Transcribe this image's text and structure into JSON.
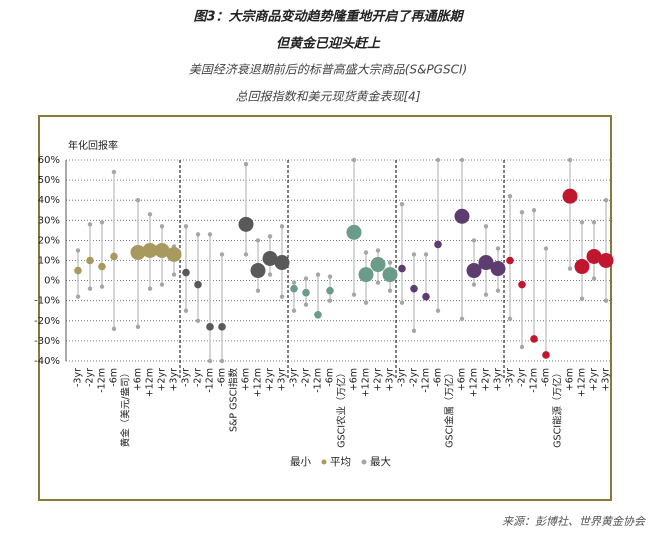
{
  "header": {
    "title": "图3：大宗商品变动趋势隆重地开启了再通胀期",
    "title2": "但黄金已迎头赶上",
    "subtitle": "美国经济衰退期前后的标普高盛大宗商品(S&PGSCI)",
    "subtitle2": "总回报指数和美元现货黄金表现[4]"
  },
  "chart_data": {
    "type": "dot-range",
    "y_label": "年化回报率",
    "categories": [
      "-3yr",
      "-2yr",
      "-12m",
      "-6m",
      "黄金（美元/盎司）",
      "+6m",
      "+12m",
      "+2yr",
      "+3yr",
      "-3yr",
      "-2yr",
      "-12m",
      "-6m",
      "S&P GSCI指数",
      "+6m",
      "+12m",
      "+2yr",
      "+3yr",
      "-3yr",
      "-2yr",
      "-12m",
      "-6m",
      "GSCI农业（万亿）",
      "+6m",
      "+12m",
      "+2yr",
      "+3yr",
      "-3yr",
      "-2yr",
      "-12m",
      "-6m",
      "GSCI金属（万亿）",
      "+6m",
      "+12m",
      "+2yr",
      "+3yr",
      "-3yr",
      "-2yr",
      "-12m",
      "-6m",
      "GSCI能源（万亿）",
      "+6m",
      "+12m",
      "+2yr",
      "+3yr"
    ],
    "series": [
      {
        "name": "最小",
        "color": "#a6a6a6",
        "values": [
          -8,
          -4,
          -3,
          -24,
          null,
          -23,
          -4,
          -2,
          3,
          -15,
          -20,
          -40,
          -40,
          null,
          13,
          -5,
          3,
          -8,
          -15,
          -12,
          -17,
          -10,
          null,
          -7,
          -11,
          -1,
          -5,
          -11,
          -25,
          -8,
          -15,
          null,
          -19,
          -2,
          -7,
          -5,
          -19,
          -33,
          -29,
          -37,
          null,
          6,
          -9,
          1,
          -10
        ]
      },
      {
        "name": "平均",
        "color": [
          "#a89a5e",
          "#a89a5e",
          "#a89a5e",
          "#a89a5e",
          null,
          "#a89a5e",
          "#a89a5e",
          "#a89a5e",
          "#a89a5e",
          "#595959",
          "#595959",
          "#595959",
          "#595959",
          null,
          "#595959",
          "#595959",
          "#595959",
          "#595959",
          "#6b9b89",
          "#6b9b89",
          "#6b9b89",
          "#6b9b89",
          null,
          "#6b9b89",
          "#6b9b89",
          "#6b9b89",
          "#6b9b89",
          "#5d3c70",
          "#5d3c70",
          "#5d3c70",
          "#5d3c70",
          null,
          "#5d3c70",
          "#5d3c70",
          "#5d3c70",
          "#5d3c70",
          "#c0172e",
          "#c0172e",
          "#c0172e",
          "#c0172e",
          null,
          "#c0172e",
          "#c0172e",
          "#c0172e",
          "#c0172e"
        ],
        "values": [
          5,
          10,
          7,
          12,
          null,
          14,
          15,
          15,
          13,
          4,
          -2,
          -23,
          -23,
          null,
          28,
          5,
          11,
          9,
          -4,
          -6,
          -17,
          -5,
          null,
          24,
          3,
          8,
          3,
          6,
          -4,
          -8,
          18,
          null,
          32,
          5,
          9,
          6,
          10,
          -2,
          -29,
          -37,
          null,
          42,
          7,
          12,
          10
        ]
      },
      {
        "name": "最大",
        "color": "#a6a6a6",
        "values": [
          15,
          28,
          29,
          54,
          null,
          40,
          33,
          27,
          17,
          27,
          23,
          23,
          13,
          null,
          58,
          20,
          22,
          27,
          -1,
          1,
          3,
          2,
          null,
          60,
          14,
          15,
          9,
          38,
          13,
          13,
          60,
          null,
          60,
          20,
          27,
          16,
          42,
          34,
          35,
          16,
          null,
          60,
          29,
          29,
          40
        ]
      }
    ],
    "ylim": [
      -40,
      60
    ],
    "yticks": [
      {
        "value": -40,
        "label": "-40%"
      },
      {
        "value": -30,
        "label": "-30%"
      },
      {
        "value": -20,
        "label": "-20%"
      },
      {
        "value": -10,
        "label": "-10%"
      },
      {
        "value": 0,
        "label": "0%"
      },
      {
        "value": 10,
        "label": "10%"
      },
      {
        "value": 20,
        "label": "20%"
      },
      {
        "value": 30,
        "label": "30%"
      },
      {
        "value": 40,
        "label": "40%"
      },
      {
        "value": 50,
        "label": "50%"
      },
      {
        "value": 60,
        "label": "60%"
      }
    ],
    "grid": true,
    "source": "来源：彭博社、世界黄金协会"
  }
}
